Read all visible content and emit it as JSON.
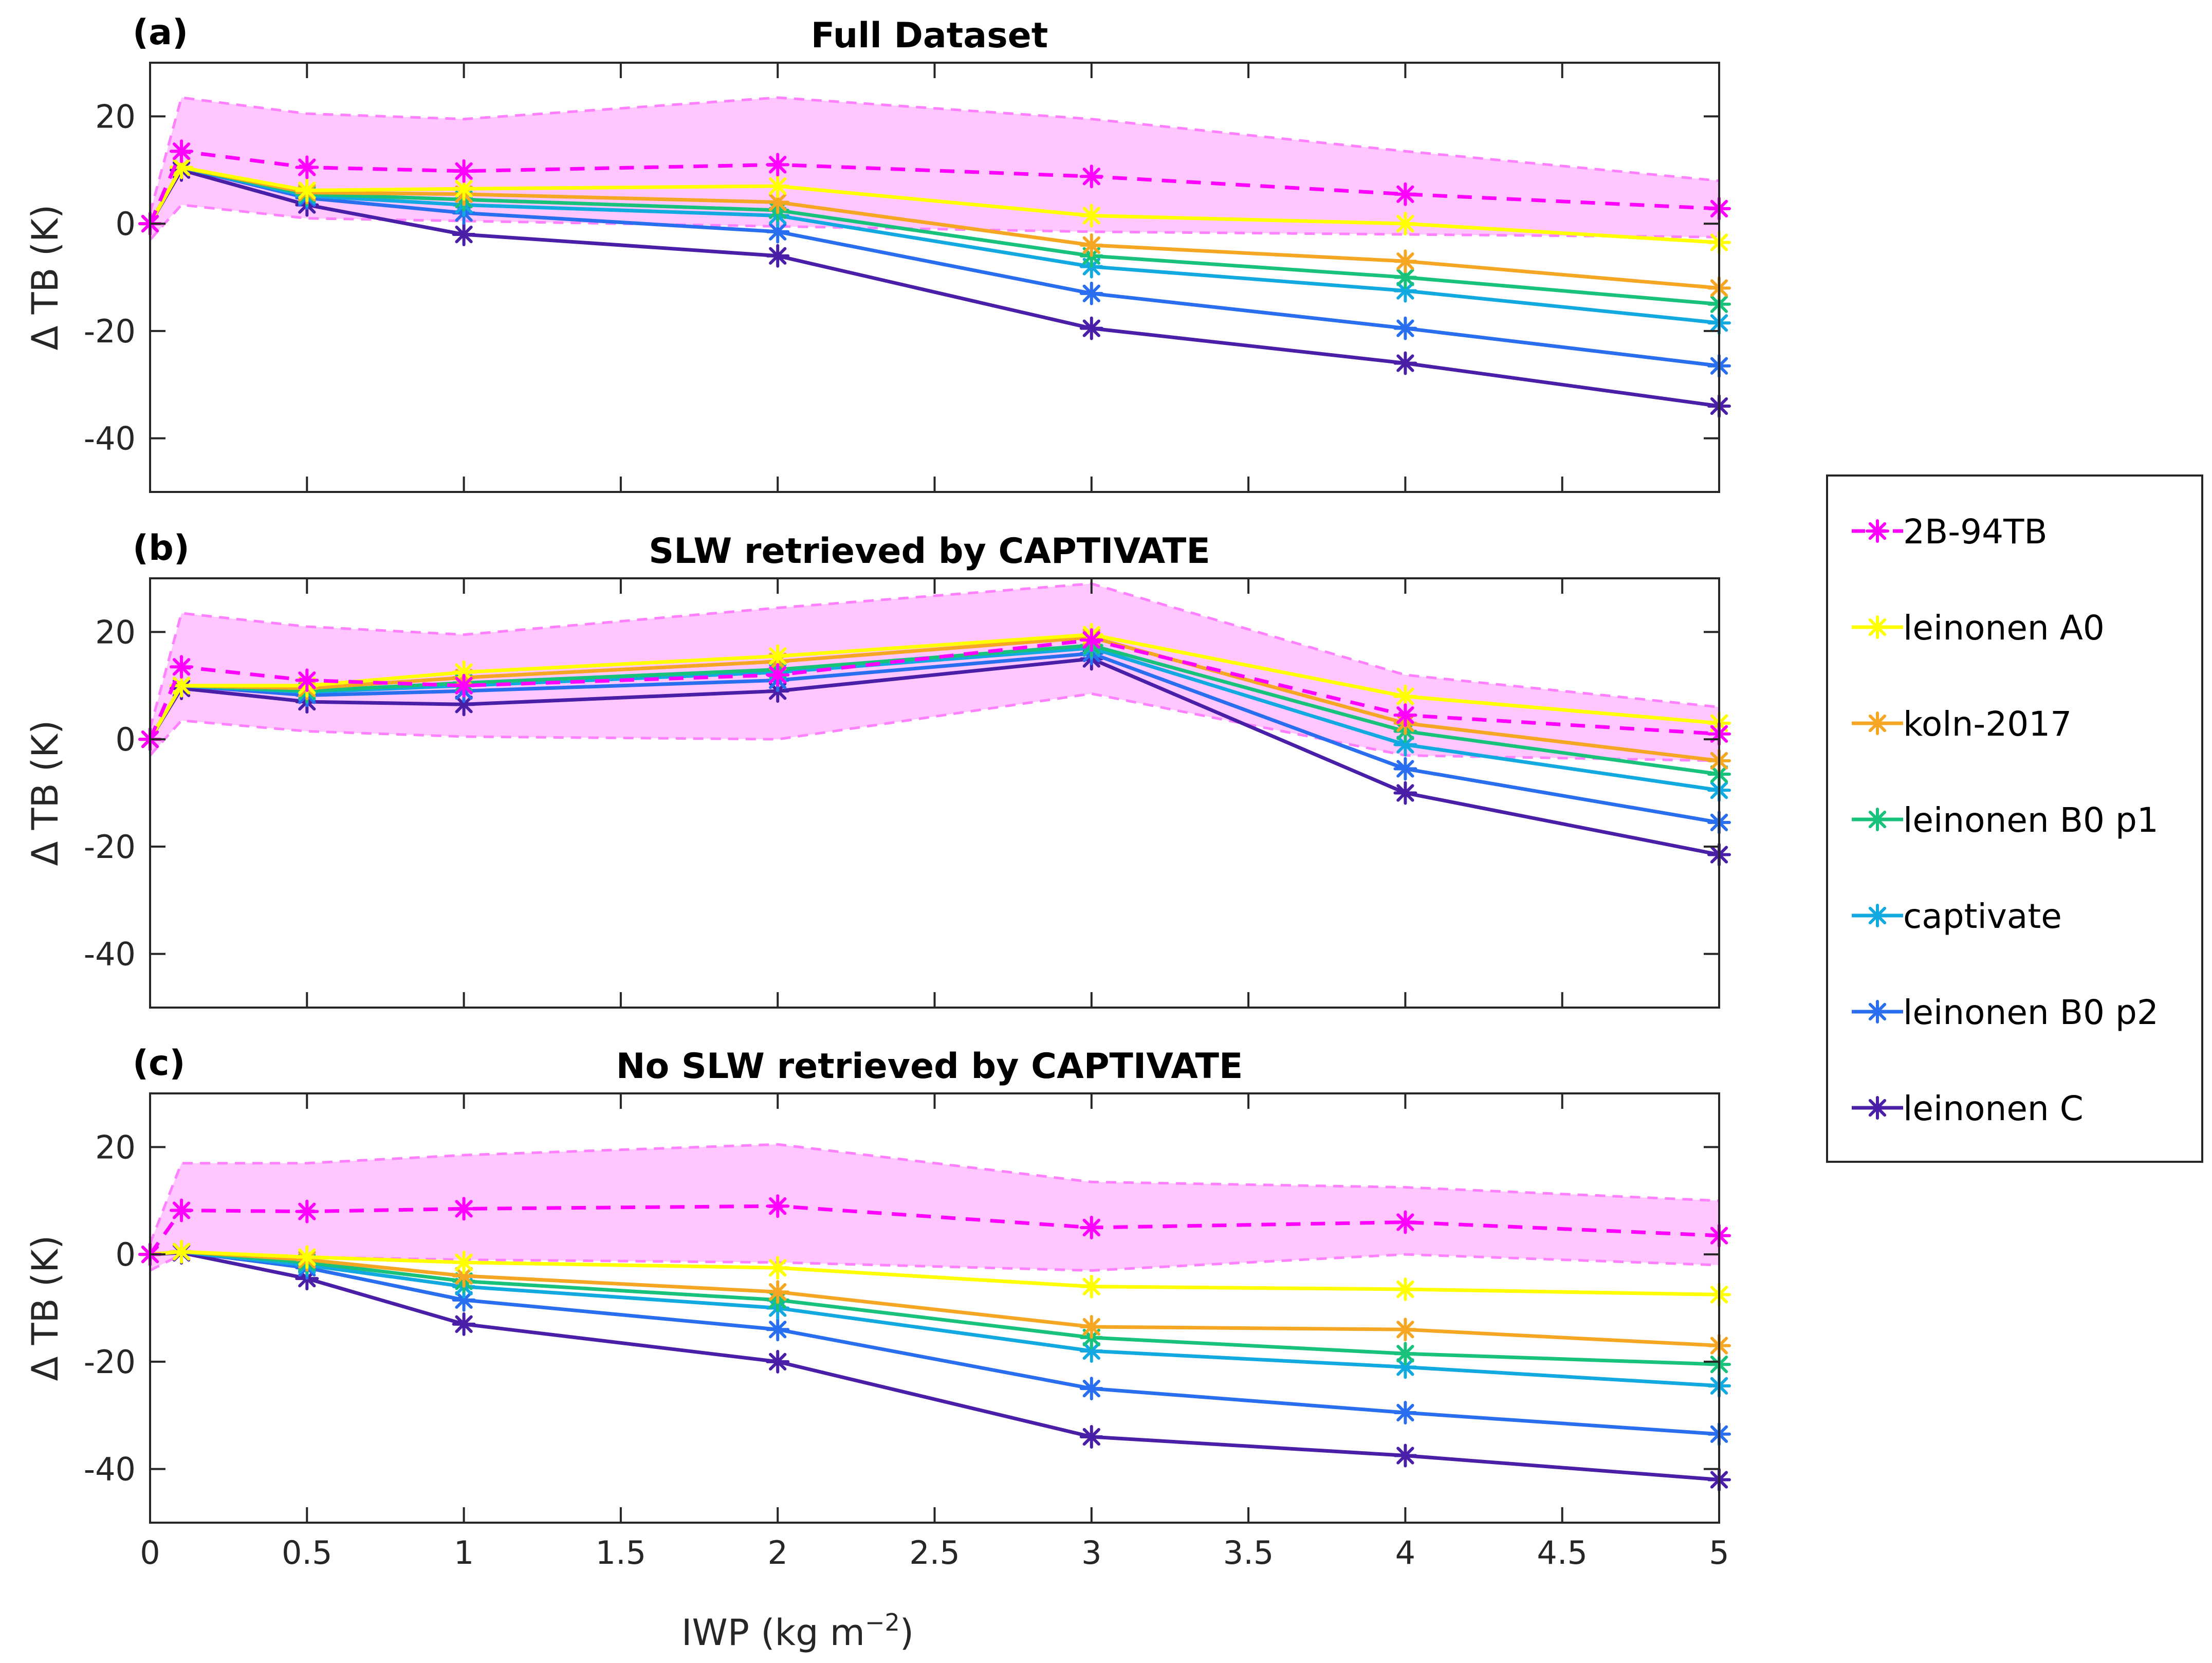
{
  "figure": {
    "xlabel": "IWP (kg m",
    "xlabel_sup": "−2",
    "xlabel_end": ")",
    "ylabel": "Δ TB (K)"
  },
  "colors": {
    "2B-94TB": "#ff00ff",
    "leinonen A0": "#ffff00",
    "koln-2017": "#f5a623",
    "leinonen B0 p1": "#19c27a",
    "captivate": "#11a9e0",
    "leinonen B0 p2": "#2a6ef0",
    "leinonen C": "#4a1fa8",
    "band_fill": "#ffc6ff",
    "band_edge": "#ff80ff"
  },
  "legend": {
    "entries": [
      "2B-94TB",
      "leinonen A0",
      "koln-2017",
      "leinonen B0 p1",
      "captivate",
      "leinonen B0 p2",
      "leinonen C"
    ]
  },
  "chart_data": [
    {
      "type": "line",
      "panel_label": "(a)",
      "title": "Full Dataset",
      "xlabel": "",
      "ylabel": "Δ TB (K)",
      "xlim": [
        0,
        5
      ],
      "ylim": [
        -50,
        30
      ],
      "xticks": [
        0,
        0.5,
        1,
        1.5,
        2,
        2.5,
        3,
        3.5,
        4,
        4.5,
        5
      ],
      "yticks": [
        -40,
        -20,
        0,
        20
      ],
      "x": [
        0,
        0.1,
        0.5,
        1,
        2,
        3,
        4,
        5
      ],
      "band": {
        "upper": [
          2,
          23.5,
          20.5,
          19.5,
          23.5,
          19.5,
          13.5,
          8
        ],
        "lower": [
          -3,
          3.5,
          1,
          0.5,
          -0.5,
          -1.5,
          -2,
          -2.5
        ]
      },
      "series": [
        {
          "name": "2B-94TB",
          "values": [
            0,
            13.5,
            10.5,
            9.8,
            11,
            8.8,
            5.5,
            2.8
          ]
        },
        {
          "name": "leinonen A0",
          "values": [
            0,
            10.5,
            6.2,
            6.5,
            7,
            1.5,
            0,
            -3.5
          ]
        },
        {
          "name": "koln-2017",
          "values": [
            0,
            10.5,
            5.8,
            5.5,
            4,
            -4,
            -7,
            -12
          ]
        },
        {
          "name": "leinonen B0 p1",
          "values": [
            0,
            10.5,
            5.5,
            4.5,
            2.5,
            -6,
            -10,
            -15
          ]
        },
        {
          "name": "captivate",
          "values": [
            0,
            10.5,
            5.2,
            3.5,
            1.5,
            -8,
            -12.5,
            -18.5
          ]
        },
        {
          "name": "leinonen B0 p2",
          "values": [
            0,
            10.5,
            4.8,
            2,
            -1.5,
            -13,
            -19.5,
            -26.5
          ]
        },
        {
          "name": "leinonen C",
          "values": [
            0,
            10,
            3.5,
            -2,
            -6,
            -19.5,
            -26,
            -34
          ]
        }
      ]
    },
    {
      "type": "line",
      "panel_label": "(b)",
      "title": "SLW retrieved by CAPTIVATE",
      "xlabel": "",
      "ylabel": "Δ TB (K)",
      "xlim": [
        0,
        5
      ],
      "ylim": [
        -50,
        30
      ],
      "xticks": [
        0,
        0.5,
        1,
        1.5,
        2,
        2.5,
        3,
        3.5,
        4,
        4.5,
        5
      ],
      "yticks": [
        -40,
        -20,
        0,
        20
      ],
      "x": [
        0,
        0.1,
        0.5,
        1,
        2,
        3,
        4,
        5
      ],
      "band": {
        "upper": [
          2,
          23.5,
          21,
          19.5,
          24.5,
          29,
          12,
          6
        ],
        "lower": [
          -3,
          3.5,
          1.5,
          0.5,
          0,
          8.5,
          -3,
          -4
        ]
      },
      "series": [
        {
          "name": "2B-94TB",
          "values": [
            0,
            13.5,
            11,
            10,
            12,
            18.5,
            4.5,
            1
          ]
        },
        {
          "name": "leinonen A0",
          "values": [
            0,
            10,
            10,
            12.5,
            15.5,
            19.5,
            8,
            3
          ]
        },
        {
          "name": "koln-2017",
          "values": [
            0,
            10,
            9.5,
            11.5,
            14.5,
            19,
            3,
            -4
          ]
        },
        {
          "name": "leinonen B0 p1",
          "values": [
            0,
            10,
            9,
            10.5,
            13,
            17.5,
            1.5,
            -6.5
          ]
        },
        {
          "name": "captivate",
          "values": [
            0,
            10,
            8.8,
            10,
            12.5,
            17,
            -1,
            -9.5
          ]
        },
        {
          "name": "leinonen B0 p2",
          "values": [
            0,
            10,
            8.2,
            9,
            11,
            16,
            -5.5,
            -15.5
          ]
        },
        {
          "name": "leinonen C",
          "values": [
            0,
            9.5,
            7,
            6.5,
            9,
            15,
            -10,
            -21.5
          ]
        }
      ]
    },
    {
      "type": "line",
      "panel_label": "(c)",
      "title": "No SLW retrieved by CAPTIVATE",
      "xlabel": "IWP (kg m−2)",
      "ylabel": "Δ TB (K)",
      "xlim": [
        0,
        5
      ],
      "ylim": [
        -50,
        30
      ],
      "xticks": [
        0,
        0.5,
        1,
        1.5,
        2,
        2.5,
        3,
        3.5,
        4,
        4.5,
        5
      ],
      "xticklabels": [
        "0",
        "0.5",
        "1",
        "1.5",
        "2",
        "2.5",
        "3",
        "3.5",
        "4",
        "4.5",
        "5"
      ],
      "yticks": [
        -40,
        -20,
        0,
        20
      ],
      "x": [
        0,
        0.1,
        0.5,
        1,
        2,
        3,
        4,
        5
      ],
      "band": {
        "upper": [
          2,
          17,
          17,
          18.5,
          20.5,
          13.5,
          12.5,
          10
        ],
        "lower": [
          -3,
          0,
          -0.5,
          -1,
          -1.5,
          -3,
          0,
          -2
        ]
      },
      "series": [
        {
          "name": "2B-94TB",
          "values": [
            0,
            8.2,
            8,
            8.5,
            9,
            5,
            6,
            3.5
          ]
        },
        {
          "name": "leinonen A0",
          "values": [
            0,
            0.5,
            -0.5,
            -1.5,
            -2.5,
            -6,
            -6.5,
            -7.5
          ]
        },
        {
          "name": "koln-2017",
          "values": [
            0,
            0.5,
            -1,
            -4,
            -7,
            -13.5,
            -14,
            -17
          ]
        },
        {
          "name": "leinonen B0 p1",
          "values": [
            0,
            0.5,
            -1.5,
            -5,
            -8.5,
            -15.5,
            -18.5,
            -20.5
          ]
        },
        {
          "name": "captivate",
          "values": [
            0,
            0.5,
            -2,
            -6,
            -10,
            -18,
            -21,
            -24.5
          ]
        },
        {
          "name": "leinonen B0 p2",
          "values": [
            0,
            0.5,
            -2.5,
            -8.5,
            -14,
            -25,
            -29.5,
            -33.5
          ]
        },
        {
          "name": "leinonen C",
          "values": [
            0,
            0.3,
            -4.5,
            -13,
            -20,
            -34,
            -37.5,
            -42
          ]
        }
      ]
    }
  ]
}
